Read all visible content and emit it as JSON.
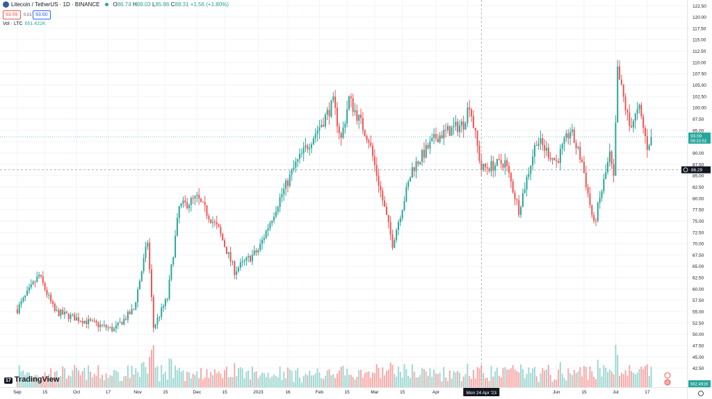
{
  "header": {
    "symbol": "Litecoin / TetherUS · 1D · BINANCE",
    "open_label": "O",
    "open": "86.74",
    "high_label": "H",
    "high": "89.03",
    "low_label": "L",
    "low": "85.86",
    "close_label": "C",
    "close": "88.31",
    "change": "+1.56 (+1.80%)"
  },
  "quotes": {
    "sell": "93.59",
    "spread": "0.01",
    "buy": "93.60"
  },
  "volume": {
    "label": "Vol · LTC",
    "value": "651.422K"
  },
  "brand": "TradingView",
  "colors": {
    "up": "#26a69a",
    "down": "#ef5350",
    "up_vol": "#9fd8d2",
    "down_vol": "#f7a9a7"
  },
  "chart_data": {
    "type": "candlestick",
    "ylim": [
      40,
      123
    ],
    "y_ticks": [
      "122.50",
      "120.00",
      "117.50",
      "115.00",
      "112.50",
      "110.00",
      "107.50",
      "105.00",
      "102.50",
      "100.00",
      "97.50",
      "95.00",
      "92.50",
      "90.00",
      "87.50",
      "85.00",
      "82.50",
      "80.00",
      "77.50",
      "75.00",
      "72.50",
      "70.00",
      "67.50",
      "65.00",
      "62.50",
      "60.00",
      "57.50",
      "55.00",
      "52.50",
      "50.00",
      "47.50",
      "45.00",
      "42.50"
    ],
    "x_ticks": [
      "Sep",
      "15",
      "Oct",
      "17",
      "Nov",
      "15",
      "Dec",
      "15",
      "2023",
      "16",
      "Feb",
      "15",
      "Mar",
      "15",
      "Apr",
      "17",
      "Jun",
      "15",
      "Jul",
      "17"
    ],
    "current_price": {
      "value": 93.59,
      "countdown": "08:23:52"
    },
    "crosshair": {
      "price": "86.29",
      "date": "Mon 24 Apr '23"
    },
    "volume_label": "562.491K",
    "keypoints": [
      {
        "x": "Sep 1",
        "close": 55.5
      },
      {
        "x": "Sep 12",
        "close": 63.0
      },
      {
        "x": "Sep 20",
        "close": 55.0
      },
      {
        "x": "Oct 1",
        "close": 53.5
      },
      {
        "x": "Oct 20",
        "close": 51.0
      },
      {
        "x": "Oct 30",
        "close": 55.5
      },
      {
        "x": "Nov 6",
        "close": 70.5
      },
      {
        "x": "Nov 9",
        "close": 51.5
      },
      {
        "x": "Nov 16",
        "close": 58.0
      },
      {
        "x": "Nov 22",
        "close": 78.0
      },
      {
        "x": "Dec 1",
        "close": 80.0
      },
      {
        "x": "Dec 12",
        "close": 73.0
      },
      {
        "x": "Dec 20",
        "close": 64.0
      },
      {
        "x": "Jan 1",
        "close": 68.5
      },
      {
        "x": "Jan 11",
        "close": 79.0
      },
      {
        "x": "Jan 20",
        "close": 87.5
      },
      {
        "x": "Feb 2",
        "close": 96.5
      },
      {
        "x": "Feb 8",
        "close": 101.0
      },
      {
        "x": "Feb 12",
        "close": 93.0
      },
      {
        "x": "Feb 16",
        "close": 102.0
      },
      {
        "x": "Feb 26",
        "close": 93.0
      },
      {
        "x": "Mar 10",
        "close": 70.0
      },
      {
        "x": "Mar 20",
        "close": 86.5
      },
      {
        "x": "Apr 1",
        "close": 93.5
      },
      {
        "x": "Apr 15",
        "close": 96.5
      },
      {
        "x": "Apr 18",
        "close": 101.0
      },
      {
        "x": "Apr 24",
        "close": 86.5
      },
      {
        "x": "May 6",
        "close": 88.0
      },
      {
        "x": "May 13",
        "close": 77.5
      },
      {
        "x": "May 22",
        "close": 93.0
      },
      {
        "x": "Jun 1",
        "close": 88.0
      },
      {
        "x": "Jun 8",
        "close": 95.0
      },
      {
        "x": "Jun 14",
        "close": 88.0
      },
      {
        "x": "Jun 20",
        "close": 74.0
      },
      {
        "x": "Jun 28",
        "close": 89.5
      },
      {
        "x": "Jun 30",
        "close": 84.0
      },
      {
        "x": "Jul 2",
        "close": 108.0
      },
      {
        "x": "Jul 8",
        "close": 96.0
      },
      {
        "x": "Jul 13",
        "close": 99.5
      },
      {
        "x": "Jul 17",
        "close": 91.5
      },
      {
        "x": "Jul 19",
        "close": 93.59
      }
    ]
  }
}
